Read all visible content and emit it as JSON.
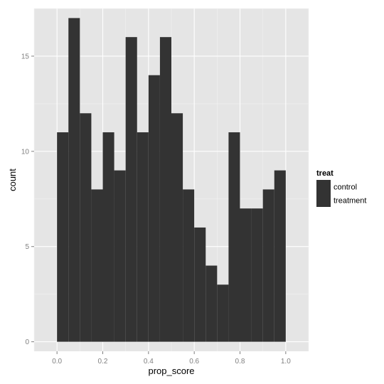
{
  "chart_data": {
    "type": "bar",
    "subtype": "histogram",
    "xlabel": "prop_score",
    "ylabel": "count",
    "xlim": [
      -0.1,
      1.1
    ],
    "ylim": [
      -0.5,
      17.5
    ],
    "x_ticks": [
      0.0,
      0.2,
      0.4,
      0.6,
      0.8,
      1.0
    ],
    "x_tick_labels": [
      "0.0",
      "0.2",
      "0.4",
      "0.6",
      "0.8",
      "1.0"
    ],
    "y_ticks": [
      0,
      5,
      10,
      15
    ],
    "y_tick_labels": [
      "0",
      "5",
      "10",
      "15"
    ],
    "grid": true,
    "bin_width": 0.05,
    "bins": [
      {
        "start": 0.0,
        "end": 0.05,
        "count": 11
      },
      {
        "start": 0.05,
        "end": 0.1,
        "count": 17
      },
      {
        "start": 0.1,
        "end": 0.15,
        "count": 12
      },
      {
        "start": 0.15,
        "end": 0.2,
        "count": 8
      },
      {
        "start": 0.2,
        "end": 0.25,
        "count": 11
      },
      {
        "start": 0.25,
        "end": 0.3,
        "count": 9
      },
      {
        "start": 0.3,
        "end": 0.35,
        "count": 16
      },
      {
        "start": 0.35,
        "end": 0.4,
        "count": 11
      },
      {
        "start": 0.4,
        "end": 0.45,
        "count": 14
      },
      {
        "start": 0.45,
        "end": 0.5,
        "count": 16
      },
      {
        "start": 0.5,
        "end": 0.55,
        "count": 12
      },
      {
        "start": 0.55,
        "end": 0.6,
        "count": 8
      },
      {
        "start": 0.6,
        "end": 0.65,
        "count": 6
      },
      {
        "start": 0.65,
        "end": 0.7,
        "count": 4
      },
      {
        "start": 0.7,
        "end": 0.75,
        "count": 3
      },
      {
        "start": 0.75,
        "end": 0.8,
        "count": 11
      },
      {
        "start": 0.8,
        "end": 0.85,
        "count": 7
      },
      {
        "start": 0.85,
        "end": 0.9,
        "count": 7
      },
      {
        "start": 0.9,
        "end": 0.95,
        "count": 8
      },
      {
        "start": 0.95,
        "end": 1.0,
        "count": 9
      }
    ],
    "legend": {
      "title": "treat",
      "position": "right",
      "entries": [
        "control",
        "treatment"
      ]
    }
  },
  "colors": {
    "panel_background": "#e5e5e5",
    "grid_major": "#ffffff",
    "grid_minor": "#f2f2f2",
    "bar_fill": "#333333",
    "tick_text": "#7f7f7f"
  }
}
